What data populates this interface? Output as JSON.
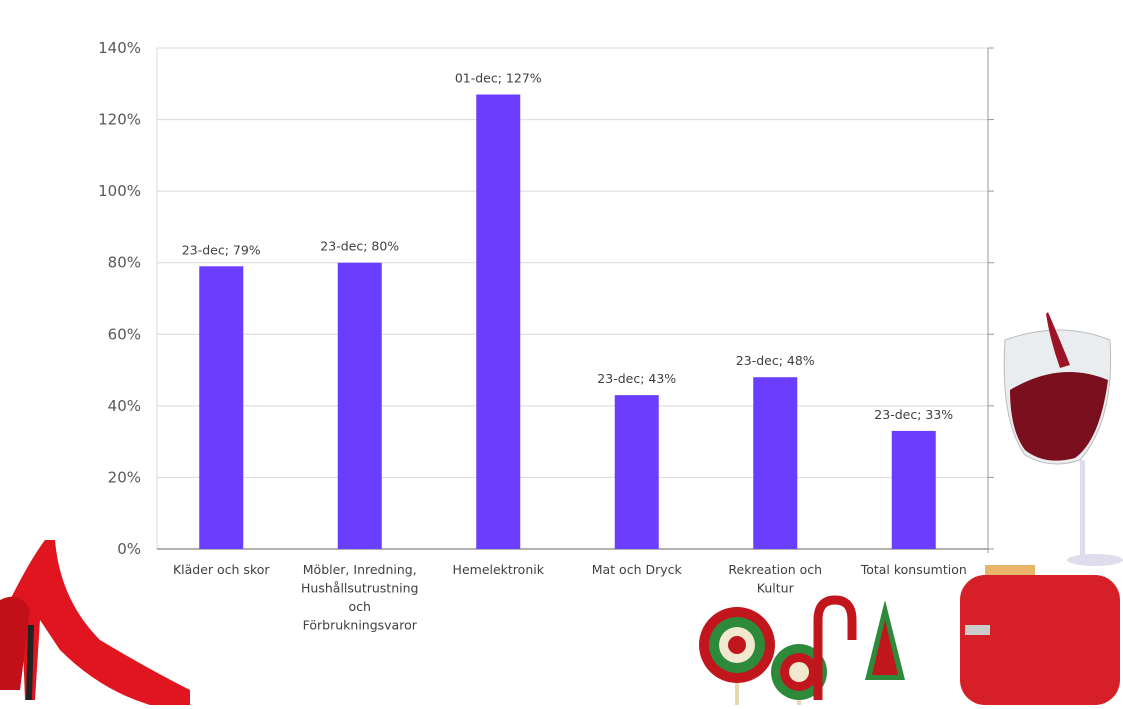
{
  "chart_data": {
    "type": "bar",
    "title": "",
    "xlabel": "",
    "ylabel": "",
    "ylim": [
      0,
      140
    ],
    "yticks": [
      "0%",
      "20%",
      "40%",
      "60%",
      "80%",
      "100%",
      "120%",
      "140%"
    ],
    "grid": true,
    "categories": [
      [
        "Kläder och skor"
      ],
      [
        "Möbler, Inredning,",
        "Hushållsutrustning",
        "och",
        "Förbrukningsvaror"
      ],
      [
        "Hemelektronik"
      ],
      [
        "Mat och Dryck"
      ],
      [
        "Rekreation och",
        "Kultur"
      ],
      [
        "Total konsumtion"
      ]
    ],
    "values": [
      79,
      80,
      127,
      43,
      48,
      33
    ],
    "data_labels": [
      "23-dec; 79%",
      "23-dec; 80%",
      "01-dec; 127%",
      "23-dec; 43%",
      "23-dec; 48%",
      "23-dec; 33%"
    ],
    "bar_color": "#6a3dff"
  }
}
